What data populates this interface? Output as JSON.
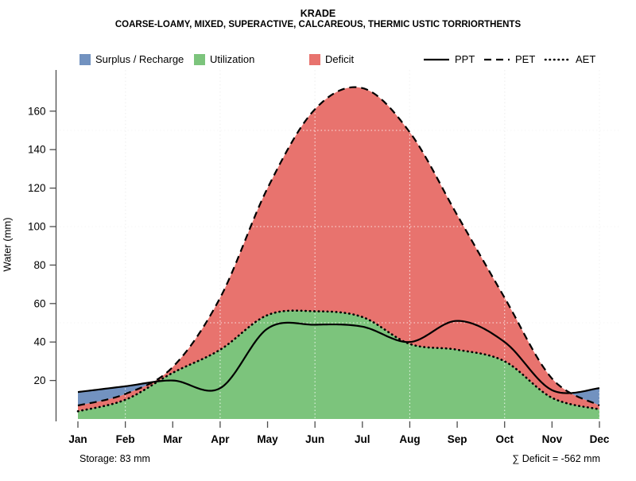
{
  "header": {
    "title": "KRADE",
    "subtitle": "COARSE-LOAMY, MIXED, SUPERACTIVE, CALCAREOUS, THERMIC USTIC TORRIORTHENTS"
  },
  "legend": {
    "surplus_label": "Surplus / Recharge",
    "utilization_label": "Utilization",
    "deficit_label": "Deficit",
    "ppt_label": "PPT",
    "pet_label": "PET",
    "aet_label": "AET"
  },
  "annotations": {
    "storage": "Storage: 83 mm",
    "deficit_sum": "∑ Deficit = -562 mm"
  },
  "colors": {
    "surplus": "#7292C0",
    "utilization": "#7CC47C",
    "deficit": "#E8736E",
    "line": "#000000",
    "grid_under": "#CFCFCF",
    "grid_over": "#FFFFFF",
    "axis": "#4D4D4D"
  },
  "chart_data": {
    "type": "area",
    "title": "KRADE",
    "xlabel": "",
    "ylabel": "Water (mm)",
    "x": [
      "Jan",
      "Feb",
      "Mar",
      "Apr",
      "May",
      "Jun",
      "Jul",
      "Aug",
      "Sep",
      "Oct",
      "Nov",
      "Dec"
    ],
    "ylim": [
      0,
      180
    ],
    "yticks": [
      20,
      40,
      60,
      80,
      100,
      120,
      140,
      160
    ],
    "grid_y": [
      50,
      100,
      150
    ],
    "grid_x_months": [
      "Feb",
      "Apr",
      "Jun",
      "Aug",
      "Oct",
      "Dec"
    ],
    "grid": "dotted",
    "legend_position": "top",
    "series": [
      {
        "name": "PPT",
        "style": "solid",
        "values": [
          14,
          17,
          20,
          16,
          47,
          49,
          48,
          40,
          51,
          40,
          15,
          16
        ]
      },
      {
        "name": "PET",
        "style": "dashed",
        "values": [
          7,
          13,
          27,
          63,
          120,
          161,
          172,
          149,
          106,
          63,
          21,
          7
        ]
      },
      {
        "name": "AET",
        "style": "dotted",
        "values": [
          4,
          10,
          24,
          36,
          54,
          56,
          53,
          39,
          36,
          30,
          11,
          5
        ]
      }
    ],
    "areas": [
      {
        "name": "Utilization",
        "between": [
          "zero",
          "AET"
        ]
      },
      {
        "name": "Deficit",
        "between": [
          "AET",
          "PET"
        ]
      },
      {
        "name": "Surplus / Recharge",
        "between": [
          "PET",
          "PPT"
        ],
        "where": "PPT>PET"
      }
    ],
    "annotations": {
      "storage_mm": 83,
      "deficit_sum_mm": -562
    }
  }
}
